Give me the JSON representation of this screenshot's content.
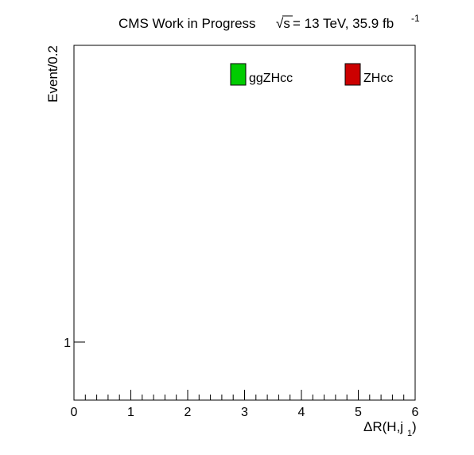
{
  "header": {
    "experiment": "CMS Work in Progress",
    "sqrt_s_sym": "√s",
    "energy": " = 13 TeV, 35.9 fb",
    "lumi_exponent": "-1"
  },
  "chart_data": {
    "type": "bar",
    "title": "",
    "xlabel_main": "ΔR(H,j",
    "xlabel_sub": "1",
    "xlabel_close": ")",
    "ylabel": "Event/0.2",
    "xlim": [
      0,
      6
    ],
    "ylim_label_visible": "1",
    "x_ticks": [
      0,
      1,
      2,
      3,
      4,
      5,
      6
    ],
    "y_ticks": [
      1
    ],
    "grid": false,
    "legend_position": "top",
    "series": [
      {
        "name": "ggZHcc",
        "color": "#00cc00",
        "values": []
      },
      {
        "name": "ZHcc",
        "color": "#cc0000",
        "values": []
      }
    ]
  },
  "colors": {
    "ggZHcc": "#00cc00",
    "ZHcc": "#cc0000"
  }
}
